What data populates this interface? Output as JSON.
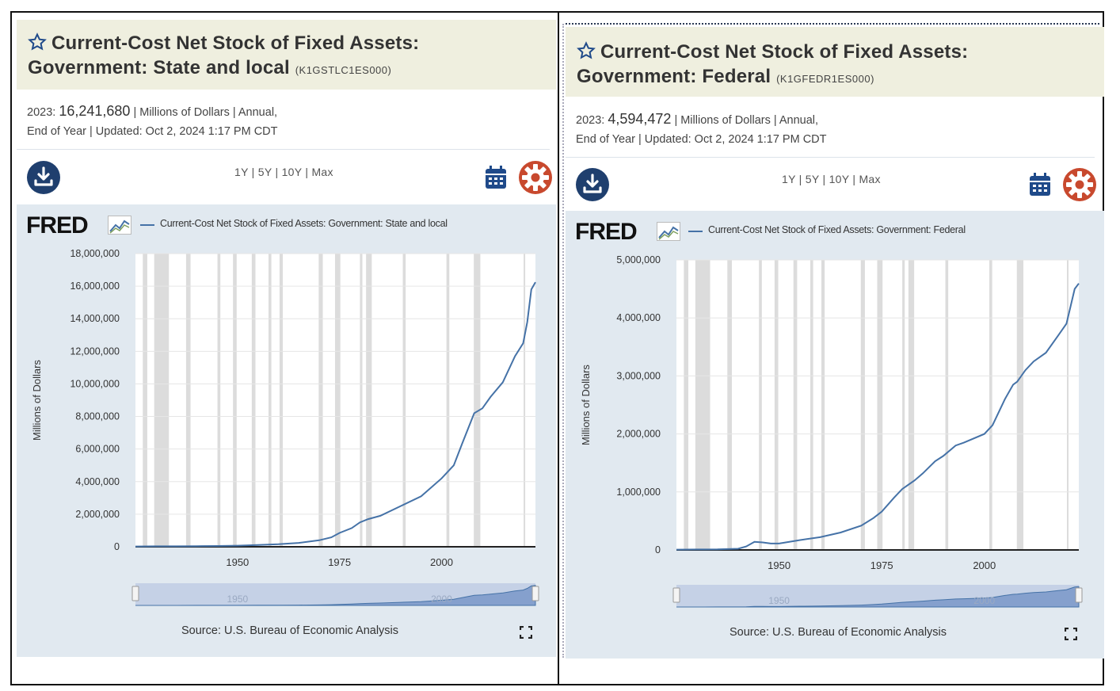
{
  "panels": [
    {
      "title_line1": "Current-Cost Net Stock of Fixed Assets:",
      "title_line2": "Government: State and local",
      "series_id": "(K1GSTLC1ES000)",
      "meta": {
        "year_label": "2023:",
        "value": "16,241,680",
        "units": "| Millions of Dollars | Annual,",
        "line2": "End of Year | Updated: Oct 2, 2024 1:17 PM CDT"
      },
      "ranges": "1Y | 5Y | 10Y | Max",
      "logo": "FRED",
      "legend": "Current-Cost Net Stock of Fixed Assets: Government: State and local",
      "source": "Source: U.S. Bureau of Economic Analysis",
      "icons": [
        "star-icon",
        "download-icon",
        "calendar-icon",
        "settings-gear-icon",
        "fullscreen-icon",
        "fred-chart-icon"
      ],
      "colors": {
        "line": "#4572a7",
        "recession": "#dcdcdc",
        "gear": "#c8492e",
        "download": "#1f3f6e"
      }
    },
    {
      "title_line1": "Current-Cost Net Stock of Fixed Assets:",
      "title_line2": "Government: Federal",
      "series_id": "(K1GFEDR1ES000)",
      "meta": {
        "year_label": "2023:",
        "value": "4,594,472",
        "units": "| Millions of Dollars | Annual,",
        "line2": "End of Year | Updated: Oct 2, 2024 1:17 PM CDT"
      },
      "ranges": "1Y | 5Y | 10Y | Max",
      "logo": "FRED",
      "legend": "Current-Cost Net Stock of Fixed Assets: Government: Federal",
      "source": "Source: U.S. Bureau of Economic Analysis",
      "icons": [
        "star-icon",
        "download-icon",
        "calendar-icon",
        "settings-gear-icon",
        "fullscreen-icon",
        "fred-chart-icon"
      ],
      "colors": {
        "line": "#4572a7",
        "recession": "#dcdcdc",
        "gear": "#c8492e",
        "download": "#1f3f6e"
      }
    }
  ],
  "chart_data": [
    {
      "type": "line",
      "title": "Current-Cost Net Stock of Fixed Assets: Government: State and local",
      "xlabel": "",
      "ylabel": "Millions of Dollars",
      "xlim": [
        1925,
        2023
      ],
      "ylim": [
        0,
        18000000
      ],
      "yticks": [
        0,
        2000000,
        4000000,
        6000000,
        8000000,
        10000000,
        12000000,
        14000000,
        16000000,
        18000000
      ],
      "ytick_labels": [
        "0",
        "2,000,000",
        "4,000,000",
        "6,000,000",
        "8,000,000",
        "10,000,000",
        "12,000,000",
        "14,000,000",
        "16,000,000",
        "18,000,000"
      ],
      "xticks": [
        1950,
        1975,
        2000
      ],
      "xtick_labels": [
        "1950",
        "1975",
        "2000"
      ],
      "navigator_labels": [
        "1950",
        "2000"
      ],
      "grid": true,
      "legend_position": "top",
      "recessions": [
        [
          1926.8,
          1927.9
        ],
        [
          1929.6,
          1933.2
        ],
        [
          1937.4,
          1938.5
        ],
        [
          1945.1,
          1945.8
        ],
        [
          1948.9,
          1949.8
        ],
        [
          1953.5,
          1954.4
        ],
        [
          1957.6,
          1958.3
        ],
        [
          1960.3,
          1961.1
        ],
        [
          1969.9,
          1970.9
        ],
        [
          1973.9,
          1975.2
        ],
        [
          1980.0,
          1980.6
        ],
        [
          1981.5,
          1982.9
        ],
        [
          1990.5,
          1991.2
        ],
        [
          2001.2,
          2001.9
        ],
        [
          2007.9,
          2009.5
        ],
        [
          2020.1,
          2020.4
        ]
      ],
      "series": [
        {
          "name": "Current-Cost Net Stock of Fixed Assets: Government: State and local",
          "x": [
            1925,
            1930,
            1935,
            1940,
            1945,
            1950,
            1955,
            1960,
            1965,
            1970,
            1973,
            1975,
            1978,
            1980,
            1982,
            1985,
            1990,
            1995,
            2000,
            2003,
            2005,
            2008,
            2010,
            2012,
            2015,
            2018,
            2020,
            2021,
            2022,
            2023
          ],
          "y": [
            20000,
            30000,
            30000,
            40000,
            50000,
            70000,
            110000,
            160000,
            240000,
            400000,
            580000,
            850000,
            1150000,
            1500000,
            1700000,
            1900000,
            2500000,
            3100000,
            4200000,
            5000000,
            6300000,
            8200000,
            8500000,
            9200000,
            10100000,
            11700000,
            12500000,
            13800000,
            15800000,
            16241680
          ]
        }
      ]
    },
    {
      "type": "line",
      "title": "Current-Cost Net Stock of Fixed Assets: Government: Federal",
      "xlabel": "",
      "ylabel": "Millions of Dollars",
      "xlim": [
        1925,
        2023
      ],
      "ylim": [
        0,
        5000000
      ],
      "yticks": [
        0,
        1000000,
        2000000,
        3000000,
        4000000,
        5000000
      ],
      "ytick_labels": [
        "0",
        "1,000,000",
        "2,000,000",
        "3,000,000",
        "4,000,000",
        "5,000,000"
      ],
      "xticks": [
        1950,
        1975,
        2000
      ],
      "xtick_labels": [
        "1950",
        "1975",
        "2000"
      ],
      "navigator_labels": [
        "1950",
        "2000"
      ],
      "grid": true,
      "legend_position": "top",
      "recessions": [
        [
          1926.8,
          1927.9
        ],
        [
          1929.6,
          1933.2
        ],
        [
          1937.4,
          1938.5
        ],
        [
          1945.1,
          1945.8
        ],
        [
          1948.9,
          1949.8
        ],
        [
          1953.5,
          1954.4
        ],
        [
          1957.6,
          1958.3
        ],
        [
          1960.3,
          1961.1
        ],
        [
          1969.9,
          1970.9
        ],
        [
          1973.9,
          1975.2
        ],
        [
          1980.0,
          1980.6
        ],
        [
          1981.5,
          1982.9
        ],
        [
          1990.5,
          1991.2
        ],
        [
          2001.2,
          2001.9
        ],
        [
          2007.9,
          2009.5
        ],
        [
          2020.1,
          2020.4
        ]
      ],
      "series": [
        {
          "name": "Current-Cost Net Stock of Fixed Assets: Government: Federal",
          "x": [
            1925,
            1930,
            1935,
            1940,
            1942,
            1944,
            1946,
            1948,
            1950,
            1955,
            1960,
            1965,
            1970,
            1973,
            1975,
            1978,
            1980,
            1983,
            1985,
            1988,
            1990,
            1993,
            1995,
            2000,
            2002,
            2005,
            2007,
            2008,
            2010,
            2012,
            2015,
            2018,
            2020,
            2021,
            2022,
            2023
          ],
          "y": [
            5000,
            8000,
            10000,
            20000,
            60000,
            140000,
            130000,
            110000,
            110000,
            170000,
            220000,
            300000,
            420000,
            550000,
            660000,
            900000,
            1050000,
            1200000,
            1320000,
            1530000,
            1620000,
            1800000,
            1850000,
            2000000,
            2150000,
            2600000,
            2850000,
            2900000,
            3100000,
            3250000,
            3400000,
            3700000,
            3900000,
            4200000,
            4500000,
            4594472
          ]
        }
      ]
    }
  ]
}
